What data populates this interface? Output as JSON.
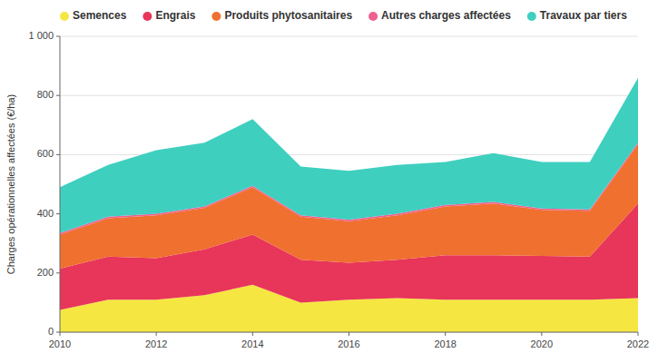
{
  "chart_data": {
    "type": "area",
    "stacked": true,
    "x": [
      2010,
      2011,
      2012,
      2013,
      2014,
      2015,
      2016,
      2017,
      2018,
      2019,
      2020,
      2021,
      2022
    ],
    "series": [
      {
        "name": "Semences",
        "color": "#f5e642",
        "values": [
          75,
          110,
          110,
          125,
          160,
          100,
          110,
          115,
          110,
          110,
          110,
          110,
          115
        ]
      },
      {
        "name": "Engrais",
        "color": "#e8355a",
        "values": [
          140,
          145,
          140,
          155,
          170,
          145,
          125,
          130,
          150,
          150,
          148,
          145,
          320
        ]
      },
      {
        "name": "Produits phytosanitaires",
        "color": "#f07030",
        "values": [
          115,
          130,
          145,
          140,
          160,
          145,
          140,
          150,
          165,
          175,
          155,
          155,
          200
        ]
      },
      {
        "name": "Autres charges affectées",
        "color": "#f06090",
        "values": [
          5,
          5,
          5,
          5,
          5,
          5,
          5,
          5,
          5,
          5,
          5,
          5,
          5
        ]
      },
      {
        "name": "Travaux par tiers",
        "color": "#3ecfbf",
        "values": [
          155,
          175,
          215,
          215,
          225,
          165,
          165,
          165,
          145,
          165,
          157,
          160,
          220
        ]
      }
    ],
    "y_label": "Charges opérationnelles affectées (€/ha)",
    "xlim": [
      2010,
      2022
    ],
    "xticks": [
      2010,
      2012,
      2014,
      2016,
      2018,
      2020,
      2022
    ],
    "ylim": [
      0,
      1000
    ],
    "yticks": [
      0,
      200,
      400,
      600,
      800,
      {
        "value": 1000,
        "label": "1 000"
      }
    ],
    "grid": true,
    "legend": "top"
  }
}
